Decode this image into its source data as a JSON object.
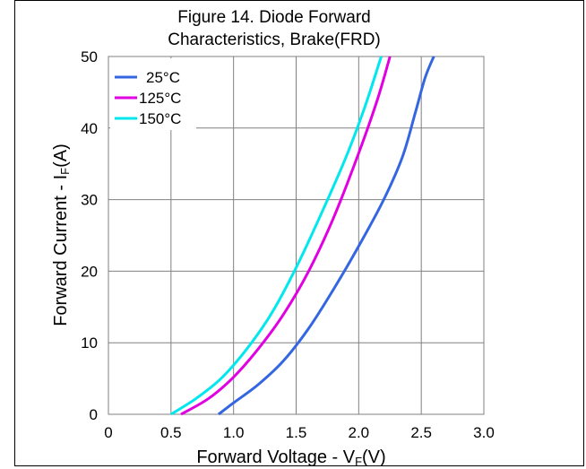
{
  "chart_data": {
    "type": "line",
    "title_line1": "Figure 14. Diode Forward",
    "title_line2": "Characteristics, Brake(FRD)",
    "xlabel_main": "Forward Voltage - V",
    "xlabel_sub": "F",
    "xlabel_tail": "(V)",
    "ylabel_main": "Forward Current - I",
    "ylabel_sub": "F",
    "ylabel_tail": "(A)",
    "xlim": [
      0,
      3.0
    ],
    "ylim": [
      0,
      50
    ],
    "x_ticks": [
      0,
      0.5,
      1.0,
      1.5,
      2.0,
      2.5,
      3.0
    ],
    "x_tick_labels": [
      "0",
      "0.5",
      "1.0",
      "1.5",
      "2.0",
      "2.5",
      "3.0"
    ],
    "y_ticks": [
      0,
      10,
      20,
      30,
      40,
      50
    ],
    "y_tick_labels": [
      "0",
      "10",
      "20",
      "30",
      "40",
      "50"
    ],
    "grid": true,
    "legend_position": "top-left",
    "series": [
      {
        "name": "25°C",
        "color": "#3366e0",
        "points": [
          [
            0.88,
            0
          ],
          [
            1.0,
            1.6
          ],
          [
            1.2,
            4.2
          ],
          [
            1.4,
            7.5
          ],
          [
            1.6,
            12
          ],
          [
            1.8,
            17.5
          ],
          [
            2.0,
            23.5
          ],
          [
            2.2,
            30
          ],
          [
            2.35,
            36
          ],
          [
            2.45,
            42
          ],
          [
            2.53,
            47
          ],
          [
            2.6,
            50
          ]
        ]
      },
      {
        "name": "125°C",
        "color": "#e100e1",
        "points": [
          [
            0.58,
            0
          ],
          [
            0.8,
            2.2
          ],
          [
            1.0,
            5.2
          ],
          [
            1.2,
            9.2
          ],
          [
            1.4,
            14
          ],
          [
            1.6,
            20
          ],
          [
            1.8,
            27.5
          ],
          [
            2.0,
            36.5
          ],
          [
            2.15,
            44
          ],
          [
            2.25,
            50
          ]
        ]
      },
      {
        "name": "150°C",
        "color": "#00e8ee",
        "points": [
          [
            0.5,
            0
          ],
          [
            0.7,
            2.2
          ],
          [
            0.9,
            5.0
          ],
          [
            1.1,
            9.0
          ],
          [
            1.3,
            14
          ],
          [
            1.5,
            20.5
          ],
          [
            1.7,
            28
          ],
          [
            1.9,
            36
          ],
          [
            2.05,
            43
          ],
          [
            2.18,
            50
          ]
        ]
      }
    ]
  }
}
